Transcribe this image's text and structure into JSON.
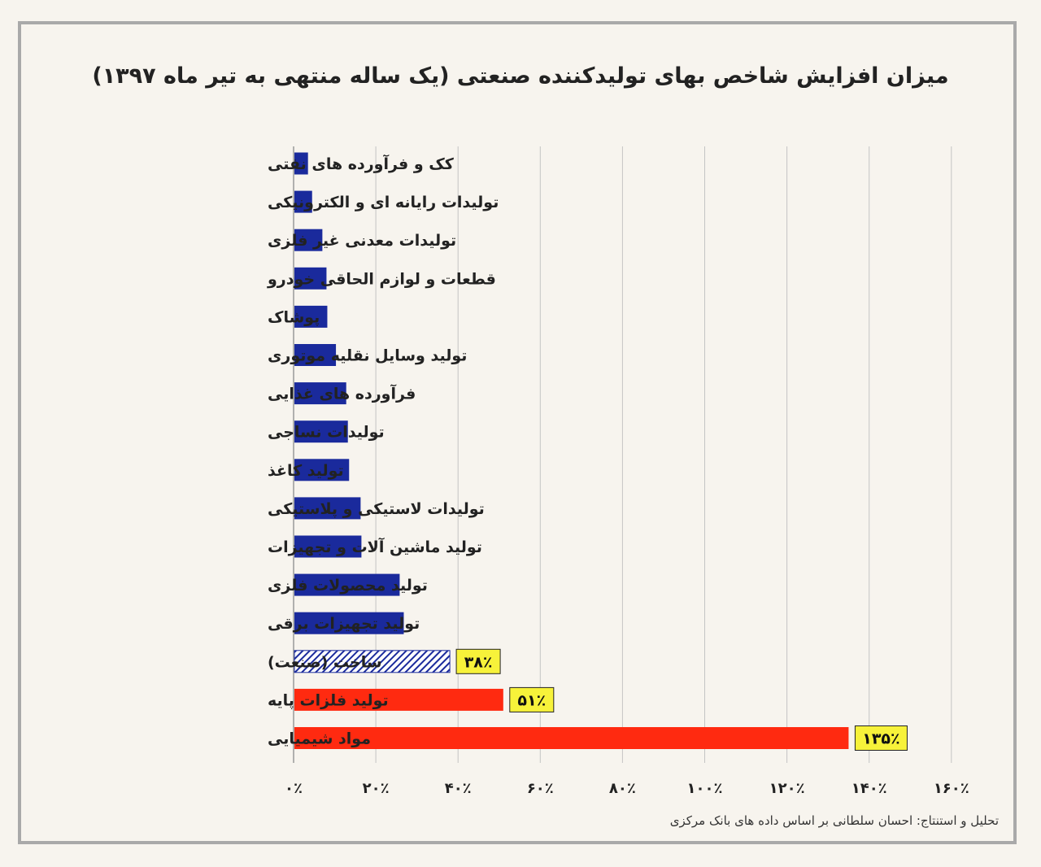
{
  "title": "میزان افزایش شاخص بهای تولیدکننده صنعتی (یک ساله منتهی به تیر ماه ۱۳۹۷)",
  "footer": "تحلیل و استنتاج: احسان سلطانی بر اساس داده های بانک مرکزی",
  "colors": {
    "bar_default": "#1a2a9c",
    "bar_highlight": "#ff2a10",
    "bar_hatched": "#1a2a9c",
    "label_box": "#f7f23a"
  },
  "chart_data": {
    "type": "bar",
    "orientation": "horizontal",
    "title": "میزان افزایش شاخص بهای تولیدکننده صنعتی (یک ساله منتهی به تیر ماه ۱۳۹۷)",
    "xlim": [
      0,
      160
    ],
    "x_ticks": [
      0,
      20,
      40,
      60,
      80,
      100,
      120,
      140,
      160
    ],
    "x_tick_labels": [
      "۰٪",
      "۲۰٪",
      "۴۰٪",
      "۶۰٪",
      "۸۰٪",
      "۱۰۰٪",
      "۱۲۰٪",
      "۱۴۰٪",
      "۱۶۰٪"
    ],
    "grid": "vertical",
    "categories": [
      "کک و فرآورده های نفتی",
      "تولیدات رایانه ای و الکترونیکی",
      "تولیدات معدنی غیر فلزی",
      "قطعات و لوازم الحاقی خودرو",
      "پوشاک",
      "تولید وسایل نقلیه موتوری",
      "فرآورده های غذایی",
      "تولیدات نساجی",
      "تولید کاغذ",
      "تولیدات لاستیکی و پلاستیکی",
      "تولید ماشین آلات و تجهیزات",
      "تولید محصولات فلزی",
      "تولید تجهیزات برقی",
      "ساخت (صنعت)",
      "تولید فلزات پایه",
      "مواد شیمیایی"
    ],
    "values": [
      3.5,
      4.5,
      7,
      8,
      8.2,
      10.3,
      12.8,
      13.2,
      13.5,
      16.3,
      16.5,
      25.8,
      26.8,
      38,
      51,
      135
    ],
    "styles": [
      "default",
      "default",
      "default",
      "default",
      "default",
      "default",
      "default",
      "default",
      "default",
      "default",
      "default",
      "default",
      "default",
      "hatched",
      "highlight",
      "highlight"
    ],
    "data_labels": [
      "",
      "",
      "",
      "",
      "",
      "",
      "",
      "",
      "",
      "",
      "",
      "",
      "",
      "۳۸٪",
      "۵۱٪",
      "۱۳۵٪"
    ]
  }
}
